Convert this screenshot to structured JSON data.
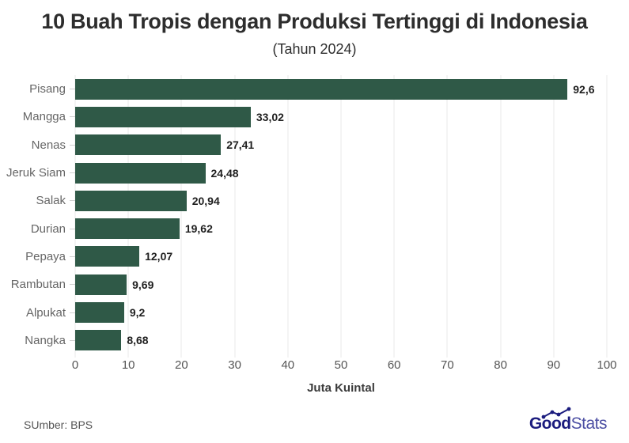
{
  "title": "10 Buah Tropis dengan Produksi Tertinggi di Indonesia",
  "subtitle": "(Tahun 2024)",
  "source": "SUmber: BPS",
  "logo": {
    "bold": "Good",
    "light": "Stats",
    "color": "#1b1c7e"
  },
  "chart_data": {
    "type": "bar",
    "orientation": "horizontal",
    "title": "10 Buah Tropis dengan Produksi Tertinggi di Indonesia",
    "subtitle": "(Tahun 2024)",
    "categories": [
      "Pisang",
      "Mangga",
      "Nenas",
      "Jeruk Siam",
      "Salak",
      "Durian",
      "Pepaya",
      "Rambutan",
      "Alpukat",
      "Nangka"
    ],
    "values": [
      92.6,
      33.02,
      27.41,
      24.48,
      20.94,
      19.62,
      12.07,
      9.69,
      9.2,
      8.68
    ],
    "value_labels": [
      "92,6",
      "33,02",
      "27,41",
      "24,48",
      "20,94",
      "19,62",
      "12,07",
      "9,69",
      "9,2",
      "8,68"
    ],
    "xlabel": "Juta Kuintal",
    "ylabel": "",
    "xlim": [
      0,
      100
    ],
    "xticks": [
      0,
      10,
      20,
      30,
      40,
      50,
      60,
      70,
      80,
      90,
      100
    ],
    "grid": true,
    "legend": false,
    "bar_color": "#2f5947"
  }
}
